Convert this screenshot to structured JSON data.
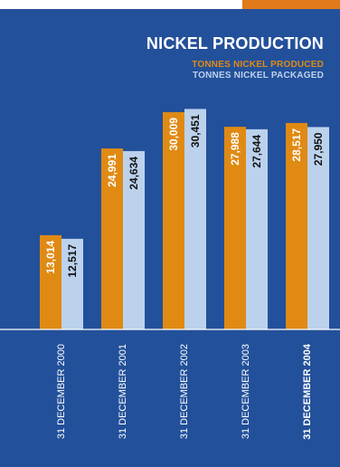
{
  "colors": {
    "background": "#23509a",
    "accent_tab": "#e07a1b",
    "produced": "#e08a14",
    "packaged": "#bcd2ec",
    "produced_label": "#ffffff",
    "packaged_label": "#111111",
    "axis_line": "#ffffff"
  },
  "chart_data": {
    "type": "bar",
    "title": "NICKEL PRODUCTION",
    "categories": [
      "31 DECEMBER 2000",
      "31 DECEMBER 2001",
      "31 DECEMBER 2002",
      "31 DECEMBER 2003",
      "31 DECEMBER 2004"
    ],
    "series": [
      {
        "name": "TONNES NICKEL PRODUCED",
        "values": [
          13014,
          24991,
          30009,
          27988,
          28517
        ],
        "labels": [
          "13,014",
          "24,991",
          "30,009",
          "27,988",
          "28,517"
        ]
      },
      {
        "name": "TONNES NICKEL PACKAGED",
        "values": [
          12517,
          24634,
          30451,
          27644,
          27950
        ],
        "labels": [
          "12,517",
          "24,634",
          "30,451",
          "27,644",
          "27,950"
        ]
      }
    ],
    "legend": "top-right",
    "grid": false,
    "value_labels": "inside bars, rotated vertical",
    "category_labels": "rotated vertical below baseline"
  }
}
